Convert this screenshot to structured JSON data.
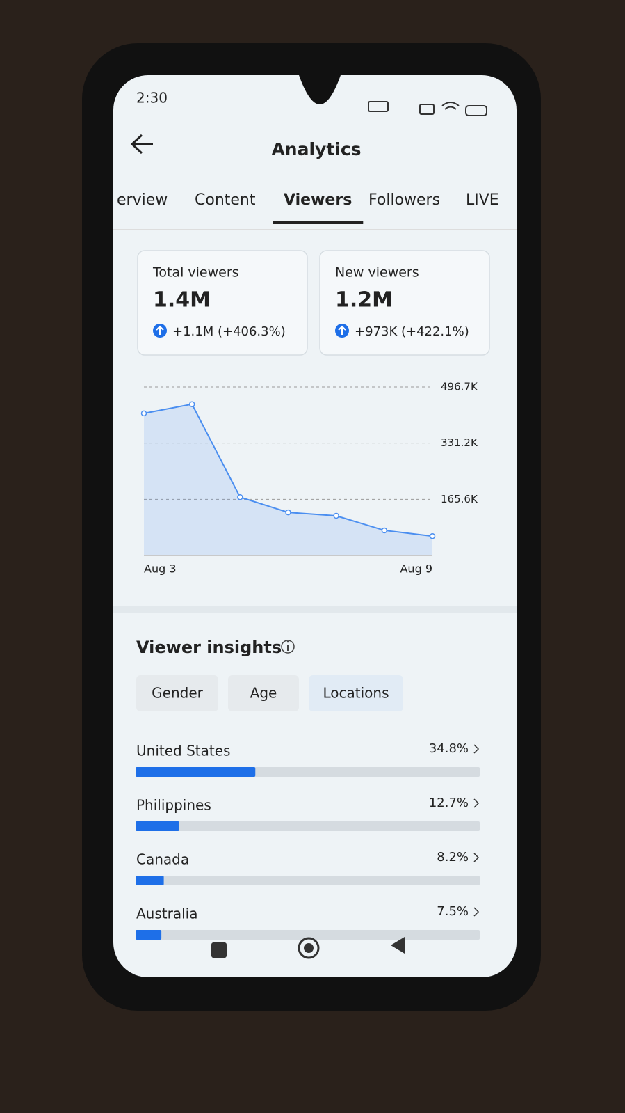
{
  "status_bar": {
    "time": "2:30"
  },
  "header": {
    "title": "Analytics"
  },
  "tabs": [
    "erview",
    "Content",
    "Viewers",
    "Followers",
    "LIVE"
  ],
  "active_tab": 2,
  "cards": [
    {
      "label": "Total viewers",
      "value": "1.4M",
      "change": "+1.1M (+406.3%)"
    },
    {
      "label": "New viewers",
      "value": "1.2M",
      "change": "+973K (+422.1%)"
    }
  ],
  "chart": {
    "type": "line",
    "color": "#4a8ef0",
    "categories": [
      "Aug 3",
      null,
      null,
      null,
      null,
      null,
      "Aug 9"
    ],
    "values": [
      419000,
      446000,
      172000,
      127000,
      117000,
      74000,
      57000
    ],
    "ylim": [
      0,
      496700
    ],
    "yticks": [
      {
        "value": 165600,
        "label": "165.6K"
      },
      {
        "value": 331200,
        "label": "331.2K"
      },
      {
        "value": 496700,
        "label": "496.7K"
      }
    ]
  },
  "insights": {
    "title": "Viewer insights",
    "filters": [
      "Gender",
      "Age",
      "Locations"
    ],
    "active_filter": 2,
    "locations": {
      "categories": [
        "United States",
        "Philippines",
        "Canada",
        "Australia"
      ],
      "values": [
        34.8,
        12.7,
        8.2,
        7.5
      ],
      "value_labels": [
        "34.8%",
        "12.7%",
        "8.2%",
        "7.5%"
      ],
      "xlim": [
        0,
        100
      ],
      "color": "#1e6fe8"
    }
  }
}
